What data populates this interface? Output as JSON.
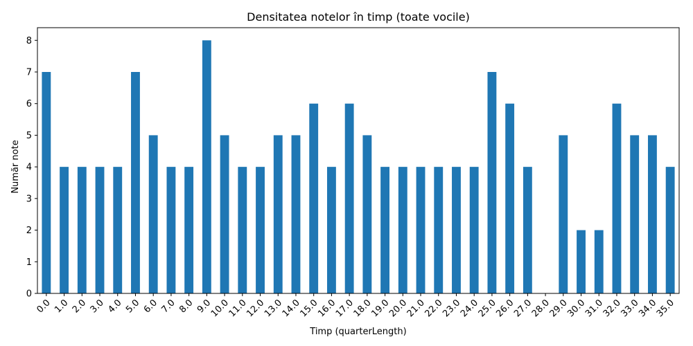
{
  "chart_data": {
    "type": "bar",
    "title": "Densitatea notelor în timp (toate vocile)",
    "xlabel": "Timp (quarterLength)",
    "ylabel": "Număr note",
    "categories": [
      "0.0",
      "1.0",
      "2.0",
      "3.0",
      "4.0",
      "5.0",
      "6.0",
      "7.0",
      "8.0",
      "9.0",
      "10.0",
      "11.0",
      "12.0",
      "13.0",
      "14.0",
      "15.0",
      "16.0",
      "17.0",
      "18.0",
      "19.0",
      "20.0",
      "21.0",
      "22.0",
      "23.0",
      "24.0",
      "25.0",
      "26.0",
      "27.0",
      "28.0",
      "29.0",
      "30.0",
      "31.0",
      "32.0",
      "33.0",
      "34.0",
      "35.0"
    ],
    "values": [
      7,
      4,
      4,
      4,
      4,
      7,
      5,
      4,
      4,
      8,
      5,
      4,
      4,
      5,
      5,
      6,
      4,
      6,
      5,
      4,
      4,
      4,
      4,
      4,
      4,
      7,
      6,
      4,
      0,
      5,
      2,
      2,
      6,
      5,
      5,
      4
    ],
    "ylim": [
      0,
      8.4
    ],
    "yticks": [
      0,
      1,
      2,
      3,
      4,
      5,
      6,
      7,
      8
    ],
    "grid": false,
    "bar_color": "#1f77b4"
  }
}
